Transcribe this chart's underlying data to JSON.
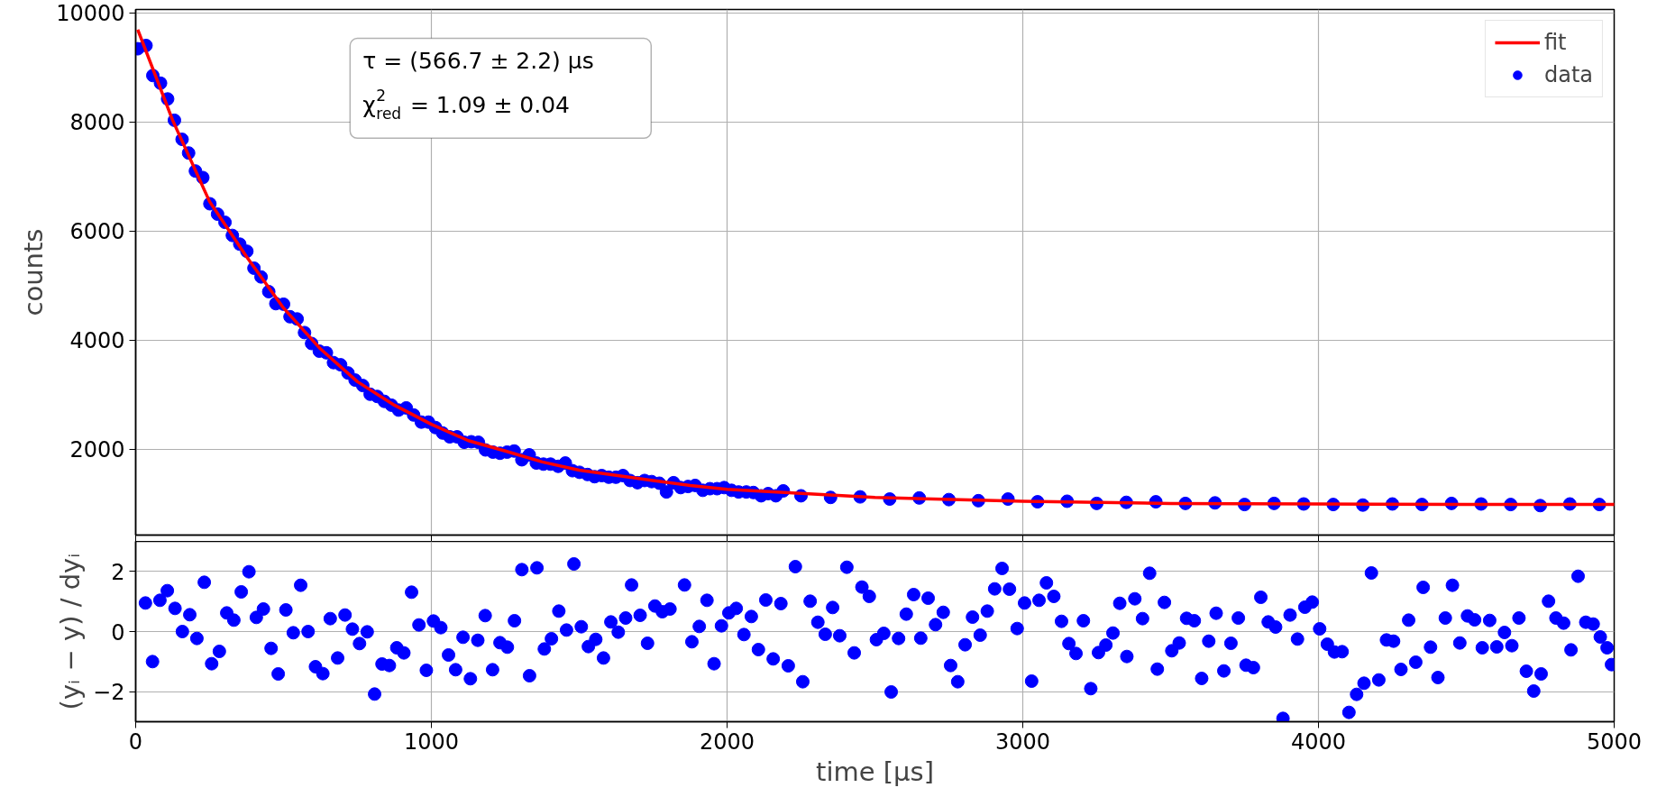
{
  "chart_data": [
    {
      "type": "scatter",
      "ylabel": "counts",
      "xlim": [
        0,
        5000
      ],
      "xticks": [
        0,
        1000,
        2000,
        3000,
        4000,
        5000
      ],
      "ylim": [
        430,
        10060
      ],
      "yticks": [
        2000,
        4000,
        6000,
        8000,
        10000
      ],
      "grid": true,
      "legend": "top right",
      "tick_labels": "y",
      "annotations": [
        "τ = (566.7 ± 2.2) μs",
        "χ$^{2}$$_{red}$ = 1.09 ± 0.04"
      ],
      "series": [
        {
          "name": "fit",
          "type": "line",
          "color": "#ff0000",
          "line_style": "solid",
          "x": [
            7,
            125,
            250,
            375,
            500,
            625,
            750,
            875,
            1000,
            1125,
            1250,
            1375,
            1500,
            1750,
            1875,
            2000,
            2500,
            3000,
            3500,
            4000,
            4500,
            5000
          ],
          "values": [
            9690,
            8030,
            6540,
            5530,
            4590,
            3840,
            3240,
            2810,
            2460,
            2160,
            1970,
            1770,
            1620,
            1430,
            1340,
            1270,
            1120,
            1050,
            1010,
            1000,
            990,
            990
          ]
        },
        {
          "name": "data",
          "type": "scatter",
          "marker": "circle",
          "color": "#0000ff",
          "x": [
            7,
            35,
            58,
            84,
            108,
            131,
            157,
            179,
            202,
            227,
            251,
            277,
            302,
            327,
            352,
            376,
            400,
            424,
            450,
            474,
            500,
            522,
            546,
            571,
            595,
            621,
            645,
            669,
            693,
            718,
            742,
            768,
            793,
            817,
            841,
            865,
            889,
            915,
            940,
            966,
            990,
            1014,
            1038,
            1062,
            1087,
            1111,
            1135,
            1159,
            1183,
            1208,
            1232,
            1256,
            1280,
            1306,
            1331,
            1355,
            1379,
            1403,
            1429,
            1453,
            1477,
            1501,
            1528,
            1552,
            1576,
            1600,
            1624,
            1648,
            1672,
            1697,
            1721,
            1745,
            1771,
            1795,
            1819,
            1843,
            1868,
            1892,
            1918,
            1942,
            1966,
            1990,
            2015,
            2039,
            2065,
            2089,
            2115,
            2139,
            2165,
            2190,
            2250,
            2350,
            2450,
            2550,
            2650,
            2750,
            2850,
            2950,
            3050,
            3150,
            3250,
            3350,
            3450,
            3550,
            3650,
            3750,
            3850,
            3950,
            4050,
            4150,
            4250,
            4350,
            4450,
            4550,
            4650,
            4750,
            4850,
            4950
          ],
          "values": [
            9340,
            9400,
            8850,
            8710,
            8420,
            8030,
            7680,
            7430,
            7100,
            6980,
            6500,
            6310,
            6160,
            5920,
            5760,
            5630,
            5320,
            5160,
            4890,
            4670,
            4660,
            4430,
            4390,
            4140,
            3940,
            3800,
            3770,
            3590,
            3550,
            3400,
            3270,
            3170,
            3010,
            2970,
            2880,
            2810,
            2720,
            2760,
            2630,
            2500,
            2500,
            2400,
            2300,
            2230,
            2230,
            2130,
            2140,
            2130,
            1990,
            1950,
            1930,
            1950,
            1970,
            1810,
            1900,
            1750,
            1730,
            1730,
            1690,
            1750,
            1610,
            1580,
            1540,
            1500,
            1520,
            1490,
            1490,
            1520,
            1430,
            1390,
            1430,
            1410,
            1380,
            1220,
            1390,
            1300,
            1320,
            1340,
            1250,
            1280,
            1280,
            1300,
            1250,
            1220,
            1220,
            1210,
            1150,
            1190,
            1150,
            1240,
            1150,
            1120,
            1130,
            1090,
            1110,
            1080,
            1060,
            1090,
            1040,
            1050,
            1010,
            1030,
            1040,
            1010,
            1020,
            990,
            1010,
            1000,
            990,
            980,
            1000,
            990,
            1010,
            1000,
            990,
            970,
            1000,
            990
          ]
        }
      ]
    },
    {
      "type": "scatter",
      "xlabel": "time [μs]",
      "ylabel": "(yᵢ − y) / dyᵢ",
      "xlim": [
        0,
        5000
      ],
      "xticks": [
        0,
        1000,
        2000,
        3000,
        4000,
        5000
      ],
      "ylim": [
        -3,
        3
      ],
      "yticks": [
        {
          "value": -2,
          "label": "−2"
        },
        0,
        2
      ],
      "grid": true,
      "marker": "circle",
      "series": [
        {
          "color": "#0000ff",
          "x": [
            33,
            57,
            82,
            107,
            133,
            158,
            183,
            207,
            232,
            257,
            283,
            308,
            332,
            357,
            383,
            408,
            432,
            458,
            482,
            508,
            533,
            558,
            583,
            608,
            633,
            658,
            683,
            708,
            733,
            757,
            783,
            808,
            833,
            858,
            883,
            907,
            933,
            958,
            983,
            1007,
            1032,
            1058,
            1082,
            1107,
            1132,
            1157,
            1182,
            1207,
            1232,
            1257,
            1281,
            1306,
            1332,
            1357,
            1382,
            1406,
            1431,
            1457,
            1482,
            1507,
            1531,
            1556,
            1582,
            1607,
            1632,
            1657,
            1677,
            1706,
            1731,
            1756,
            1781,
            1807,
            1856,
            1881,
            1906,
            1932,
            1956,
            1981,
            2006,
            2031,
            2057,
            2082,
            2106,
            2131,
            2156,
            2182,
            2207,
            2231,
            2256,
            2281,
            2307,
            2332,
            2357,
            2381,
            2405,
            2430,
            2456,
            2481,
            2505,
            2530,
            2555,
            2580,
            2606,
            2631,
            2655,
            2680,
            2705,
            2731,
            2756,
            2780,
            2805,
            2830,
            2856,
            2880,
            2905,
            2930,
            2955,
            2981,
            3006,
            3030,
            3055,
            3080,
            3105,
            3131,
            3156,
            3180,
            3205,
            3230,
            3256,
            3281,
            3305,
            3328,
            3352,
            3379,
            3405,
            3429,
            3455,
            3479,
            3504,
            3529,
            3554,
            3580,
            3605,
            3629,
            3654,
            3680,
            3704,
            3729,
            3755,
            3780,
            3805,
            3830,
            3855,
            3880,
            3904,
            3929,
            3954,
            3979,
            4004,
            4030,
            4054,
            4080,
            4103,
            4129,
            4154,
            4179,
            4204,
            4230,
            4254,
            4279,
            4305,
            4329,
            4354,
            4379,
            4404,
            4429,
            4453,
            4478,
            4504,
            4528,
            4554,
            4579,
            4603,
            4629,
            4654,
            4678,
            4703,
            4728,
            4753,
            4778,
            4803,
            4829,
            4854,
            4878,
            4904,
            4929,
            4953,
            4976,
            4991
          ],
          "values": [
            0.95,
            -1.0,
            1.04,
            1.36,
            0.77,
            0,
            0.56,
            -0.23,
            1.64,
            -1.07,
            -0.66,
            0.62,
            0.38,
            1.32,
            1.99,
            0.47,
            0.75,
            -0.56,
            -1.41,
            0.72,
            -0.04,
            1.54,
            0,
            -1.17,
            -1.4,
            0.43,
            -0.88,
            0.55,
            0.08,
            -0.4,
            -0.01,
            -2.08,
            -1.08,
            -1.13,
            -0.54,
            -0.71,
            1.31,
            0.22,
            -1.29,
            0.35,
            0.13,
            -0.78,
            -1.27,
            -0.19,
            -1.57,
            -0.29,
            0.53,
            -1.27,
            -0.37,
            -0.52,
            0.36,
            2.06,
            -1.47,
            2.12,
            -0.58,
            -0.24,
            0.68,
            0.05,
            2.25,
            0.16,
            -0.5,
            -0.26,
            -0.88,
            0.32,
            -0.02,
            0.45,
            1.55,
            0.54,
            -0.39,
            0.85,
            0.66,
            0.75,
            1.55,
            -0.34,
            0.17,
            1.04,
            -1.07,
            0.19,
            0.62,
            0.77,
            -0.1,
            0.5,
            -0.6,
            1.05,
            -0.91,
            0.93,
            -1.14,
            2.16,
            -1.67,
            1.01,
            0.31,
            -0.09,
            0.8,
            -0.14,
            2.14,
            -0.71,
            1.48,
            1.17,
            -0.27,
            -0.06,
            -2.01,
            -0.23,
            0.58,
            1.23,
            -0.22,
            1.11,
            0.23,
            0.64,
            -1.13,
            -1.67,
            -0.44,
            0.48,
            -0.12,
            0.68,
            1.42,
            2.1,
            1.41,
            0.1,
            0.95,
            -1.65,
            1.04,
            1.62,
            1.17,
            0.34,
            -0.4,
            -0.73,
            0.36,
            -1.9,
            -0.7,
            -0.45,
            -0.05,
            0.94,
            -0.83,
            1.09,
            0.43,
            1.94,
            -1.25,
            0.97,
            -0.64,
            -0.38,
            0.44,
            0.36,
            -1.56,
            -0.32,
            0.61,
            -1.31,
            -0.39,
            0.45,
            -1.12,
            -1.2,
            1.14,
            0.32,
            0.15,
            -2.89,
            0.55,
            -0.25,
            0.81,
            0.98,
            0.09,
            -0.42,
            -0.68,
            -0.67,
            -2.69,
            -2.09,
            -1.72,
            1.95,
            -1.61,
            -0.28,
            -0.32,
            -1.26,
            0.38,
            -1.02,
            1.47,
            -0.52,
            -1.53,
            0.45,
            1.54,
            -0.38,
            0.52,
            0.39,
            -0.54,
            0.37,
            -0.51,
            -0.03,
            -0.47,
            0.45,
            -1.32,
            -1.98,
            -1.41,
            1.01,
            0.45,
            0.28,
            -0.61,
            1.84,
            0.31,
            0.25,
            -0.18,
            -0.54,
            -1.1
          ]
        }
      ]
    }
  ]
}
